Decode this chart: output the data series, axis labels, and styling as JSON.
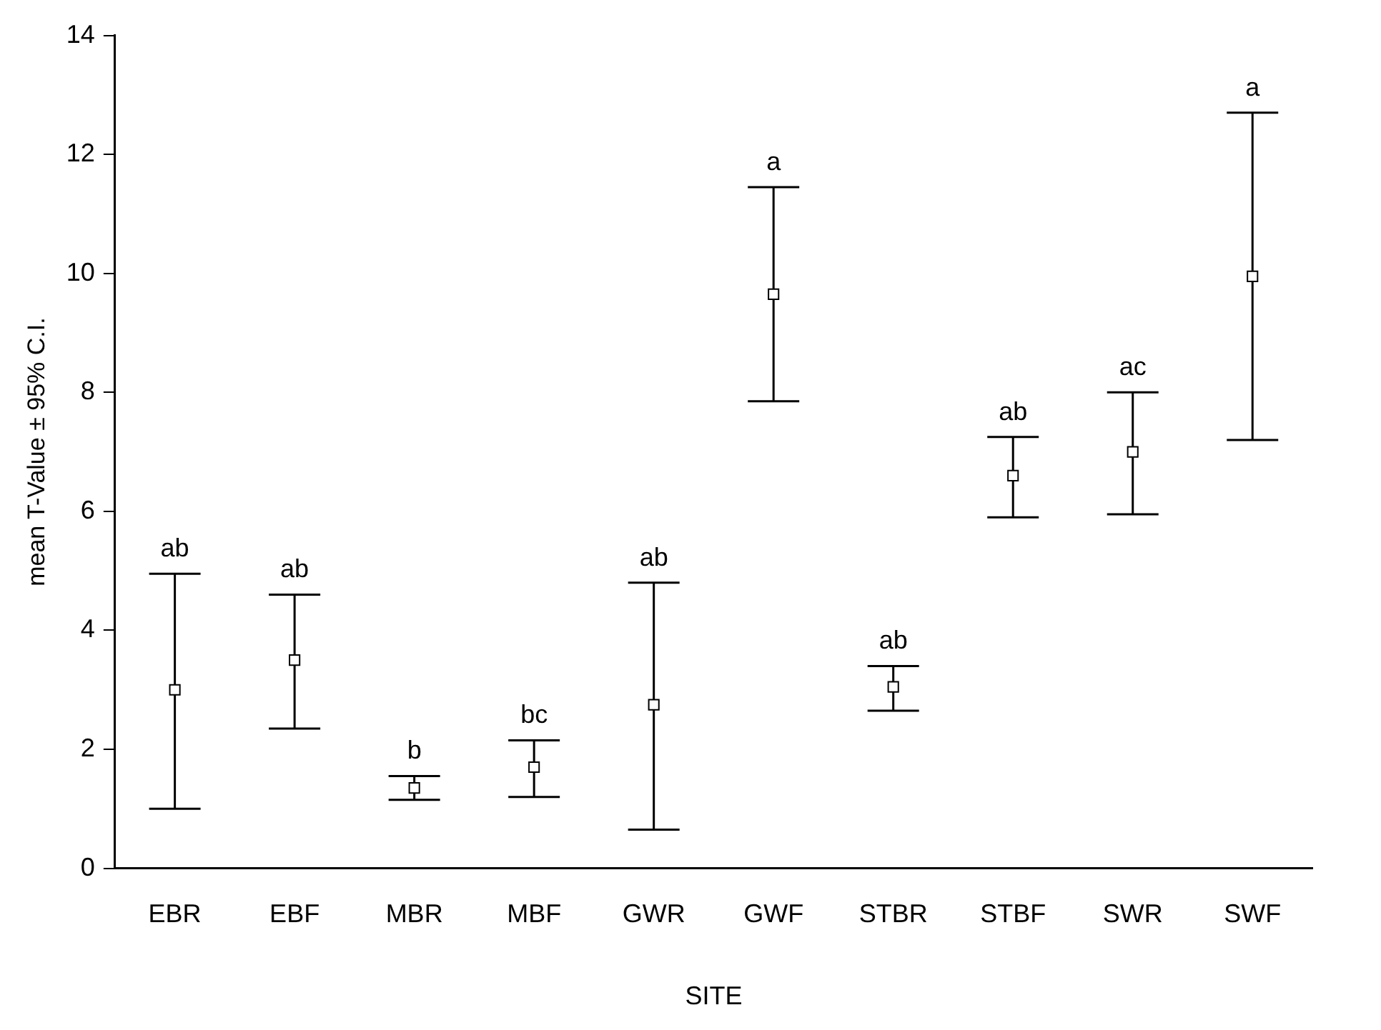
{
  "chart_data": {
    "type": "scatter",
    "xlabel": "SITE",
    "ylabel": "mean T-Value ± 95% C.I.",
    "categories": [
      "EBR",
      "EBF",
      "MBR",
      "MBF",
      "GWR",
      "GWF",
      "STBR",
      "STBF",
      "SWR",
      "SWF"
    ],
    "series": [
      {
        "color": "#000000",
        "values": [
          3.0,
          3.5,
          1.35,
          1.7,
          2.75,
          9.65,
          3.05,
          6.6,
          7.0,
          9.95
        ],
        "errors": [
          [
            1.0,
            4.95
          ],
          [
            2.35,
            4.6
          ],
          [
            1.15,
            1.55
          ],
          [
            1.2,
            2.15
          ],
          [
            0.65,
            4.8
          ],
          [
            7.85,
            11.45
          ],
          [
            2.65,
            3.4
          ],
          [
            5.9,
            7.25
          ],
          [
            5.95,
            8.0
          ],
          [
            7.2,
            12.7
          ]
        ]
      }
    ],
    "marker": "square",
    "ylim": [
      0,
      14
    ],
    "yticks": [
      0,
      2,
      4,
      6,
      8,
      10,
      12,
      14
    ],
    "grid": false,
    "legend": false,
    "annotations": [
      {
        "text": "ab",
        "x": "EBR",
        "y": 4.95
      },
      {
        "text": "ab",
        "x": "EBF",
        "y": 4.6
      },
      {
        "text": "b",
        "x": "MBR",
        "y": 1.55
      },
      {
        "text": "bc",
        "x": "MBF",
        "y": 2.15
      },
      {
        "text": "ab",
        "x": "GWR",
        "y": 4.8
      },
      {
        "text": "a",
        "x": "GWF",
        "y": 11.45
      },
      {
        "text": "ab",
        "x": "STBR",
        "y": 3.4
      },
      {
        "text": "ab",
        "x": "STBF",
        "y": 7.25
      },
      {
        "text": "ac",
        "x": "SWR",
        "y": 8.0
      },
      {
        "text": "a",
        "x": "SWF",
        "y": 12.7
      }
    ]
  }
}
